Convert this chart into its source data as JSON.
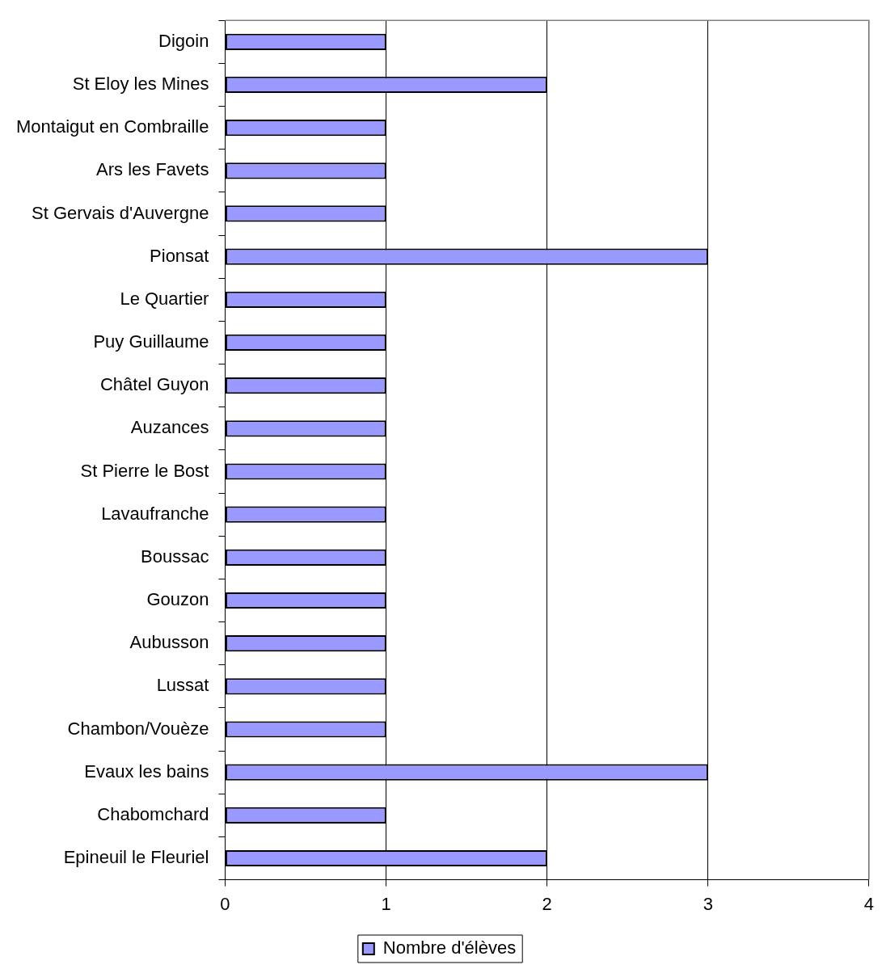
{
  "chart_data": {
    "type": "bar",
    "orientation": "horizontal",
    "categories": [
      "Digoin",
      "St Eloy les Mines",
      "Montaigut en Combraille",
      "Ars les Favets",
      "St Gervais d'Auvergne",
      "Pionsat",
      "Le Quartier",
      "Puy Guillaume",
      "Châtel Guyon",
      "Auzances",
      "St Pierre le Bost",
      "Lavaufranche",
      "Boussac",
      "Gouzon",
      "Aubusson",
      "Lussat",
      "Chambon/Vouèze",
      "Evaux les bains",
      "Chabomchard",
      "Epineuil le Fleuriel"
    ],
    "series": [
      {
        "name": "Nombre d'élèves",
        "color": "#9999ff",
        "values": [
          1,
          2,
          1,
          1,
          1,
          3,
          1,
          1,
          1,
          1,
          1,
          1,
          1,
          1,
          1,
          1,
          1,
          3,
          1,
          2
        ]
      }
    ],
    "xlim": [
      0,
      4
    ],
    "xticks": [
      0,
      1,
      2,
      3,
      4
    ],
    "grid": "x",
    "legend": "bottom"
  }
}
